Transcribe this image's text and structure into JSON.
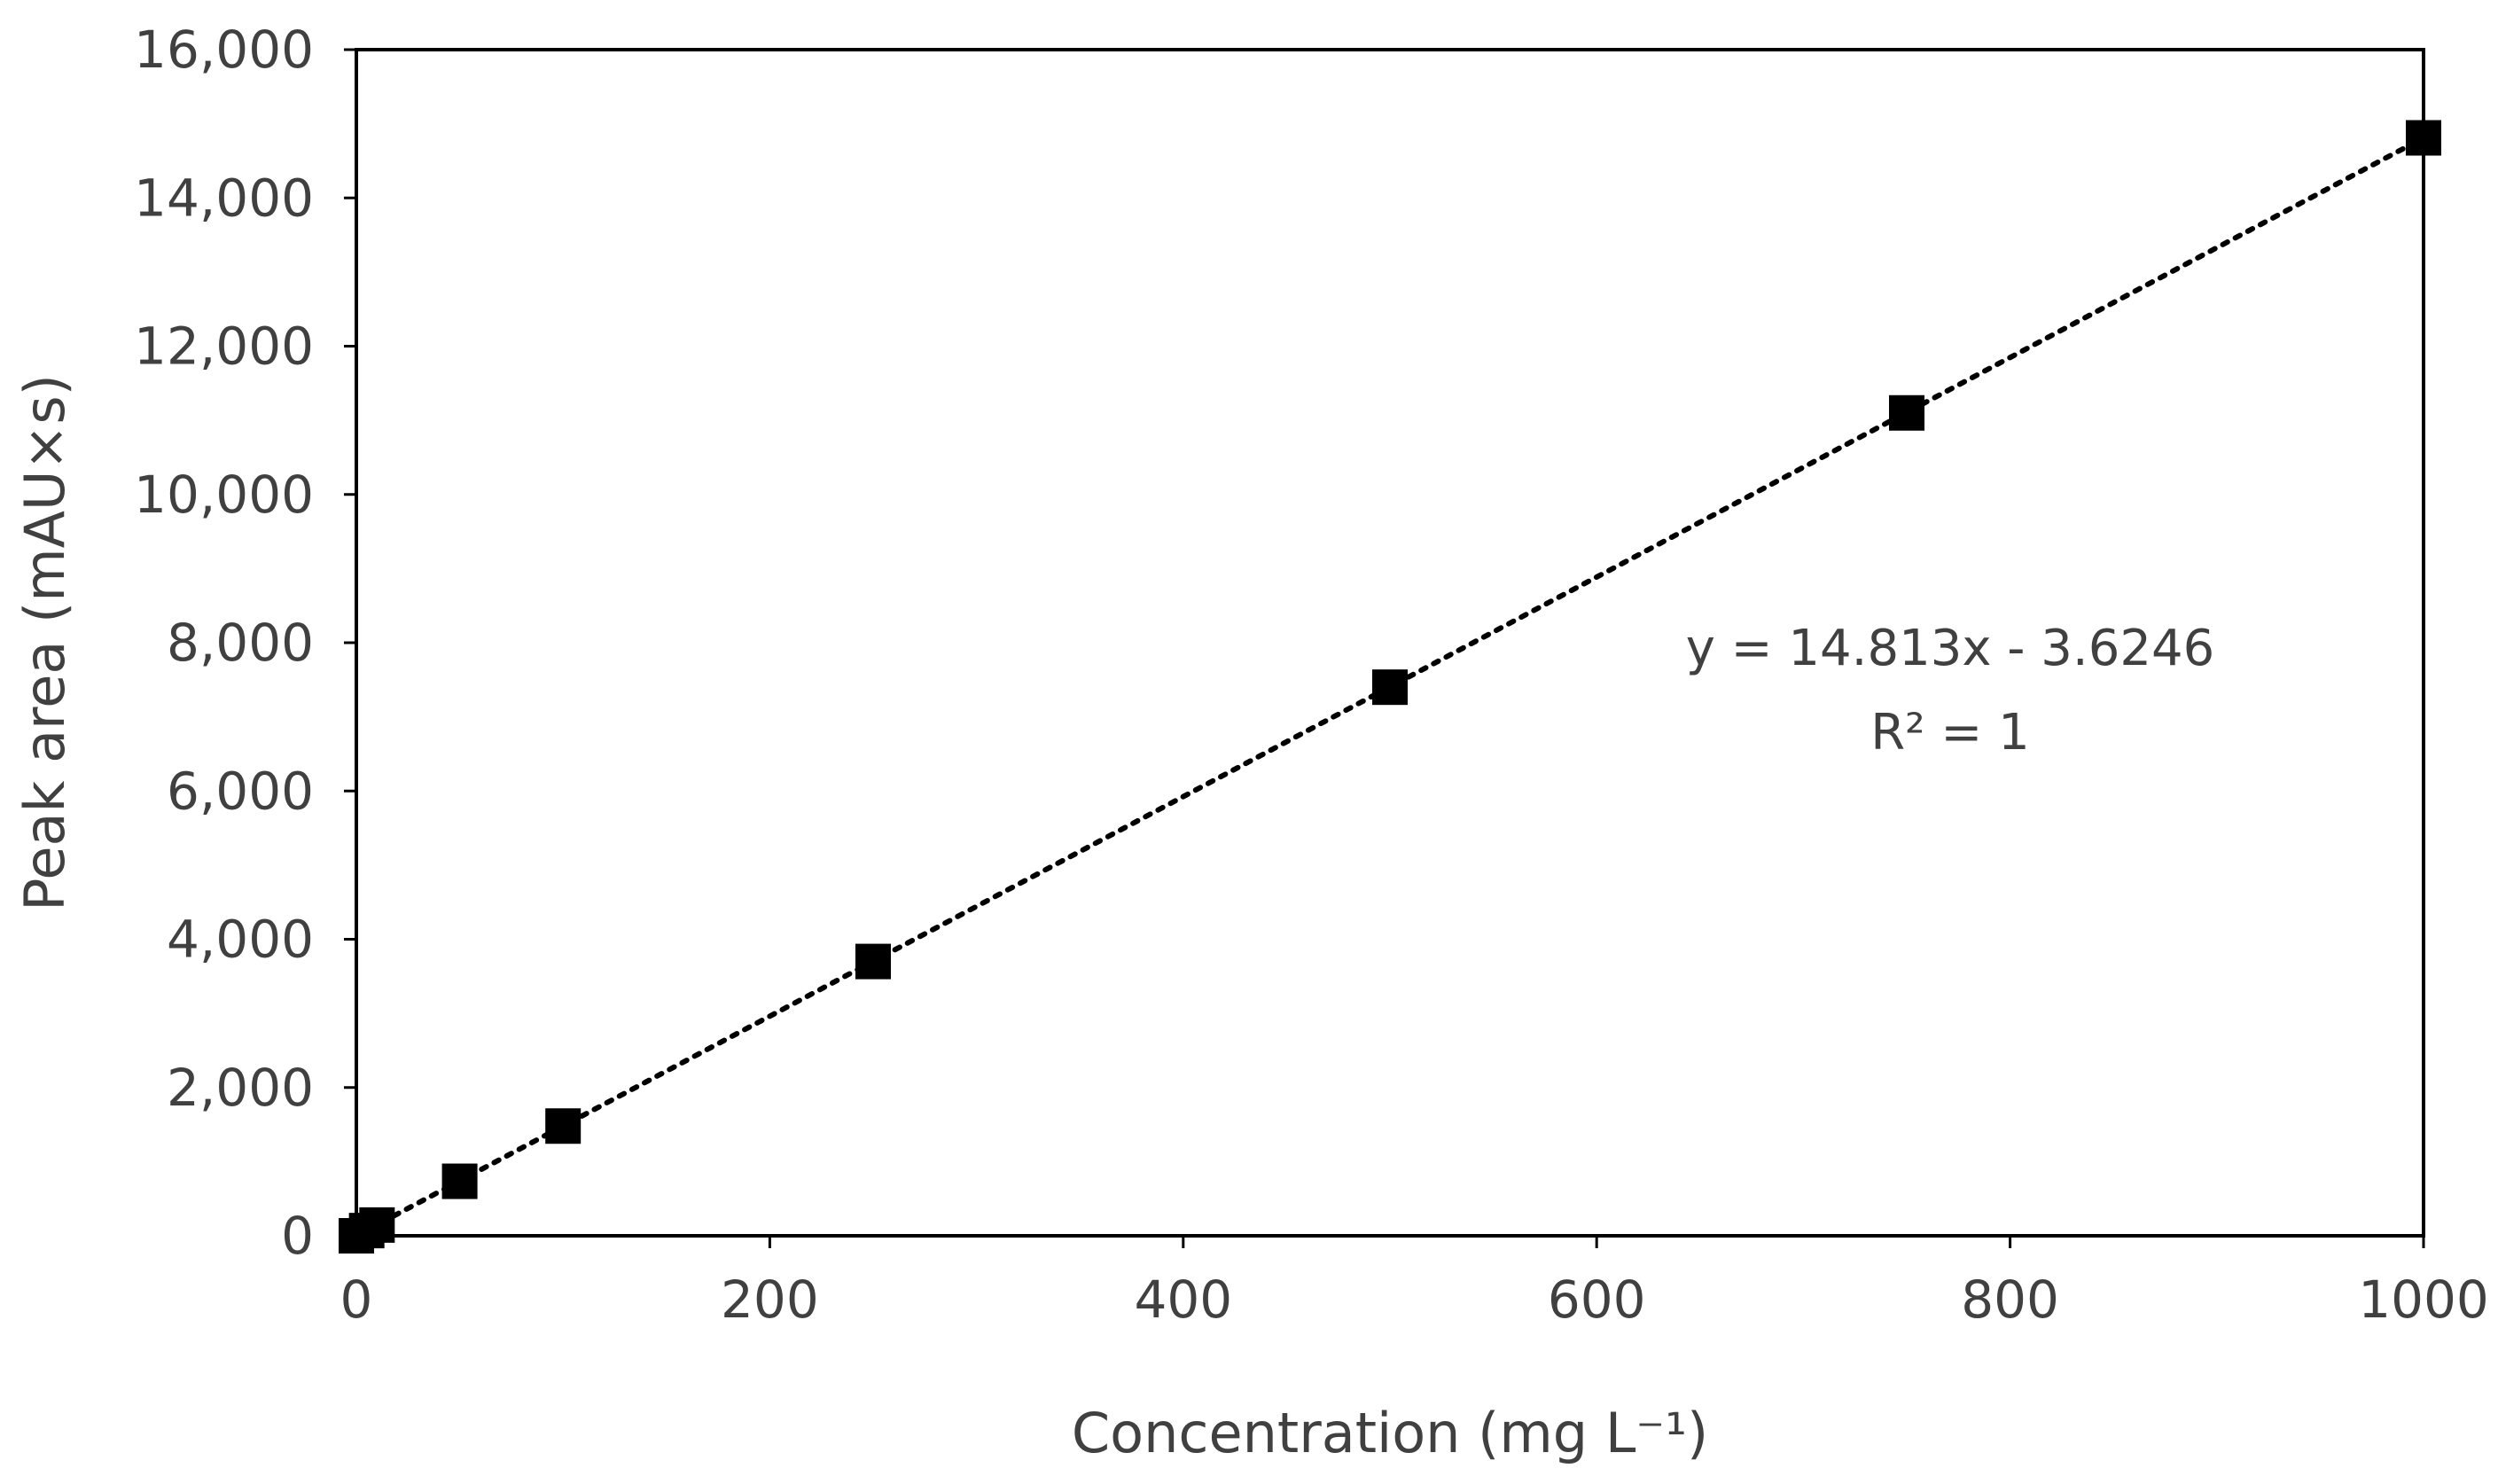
{
  "chart_data": {
    "type": "scatter",
    "title": "",
    "xlabel": "Concentration (mg L⁻¹)",
    "ylabel": "Peak area (mAU×s)",
    "xlim": [
      0,
      1000
    ],
    "ylim": [
      0,
      16000
    ],
    "x_ticks": [
      0,
      200,
      400,
      600,
      800,
      1000
    ],
    "x_tick_labels": [
      "0",
      "200",
      "400",
      "600",
      "800",
      "1000"
    ],
    "y_ticks": [
      0,
      2000,
      4000,
      6000,
      8000,
      10000,
      12000,
      14000,
      16000
    ],
    "y_tick_labels": [
      "0",
      "2,000",
      "4,000",
      "6,000",
      "8,000",
      "10,000",
      "12,000",
      "14,000",
      "16,000"
    ],
    "grid": false,
    "legend": "none",
    "series": [
      {
        "marker": "square",
        "color": "#000000",
        "points": [
          {
            "x": 0,
            "y": 0
          },
          {
            "x": 5,
            "y": 70
          },
          {
            "x": 10,
            "y": 145
          },
          {
            "x": 50,
            "y": 735
          },
          {
            "x": 100,
            "y": 1480
          },
          {
            "x": 250,
            "y": 3700
          },
          {
            "x": 500,
            "y": 7400
          },
          {
            "x": 750,
            "y": 11100
          },
          {
            "x": 1000,
            "y": 14810
          }
        ]
      }
    ],
    "trendline": {
      "type": "linear",
      "style": "dotted",
      "color": "#000000",
      "slope": 14.813,
      "intercept": -3.6246,
      "x_range": [
        0,
        1000
      ]
    },
    "annotations": [
      {
        "text": "y = 14.813x - 3.6246"
      },
      {
        "text": "R² = 1"
      }
    ]
  }
}
